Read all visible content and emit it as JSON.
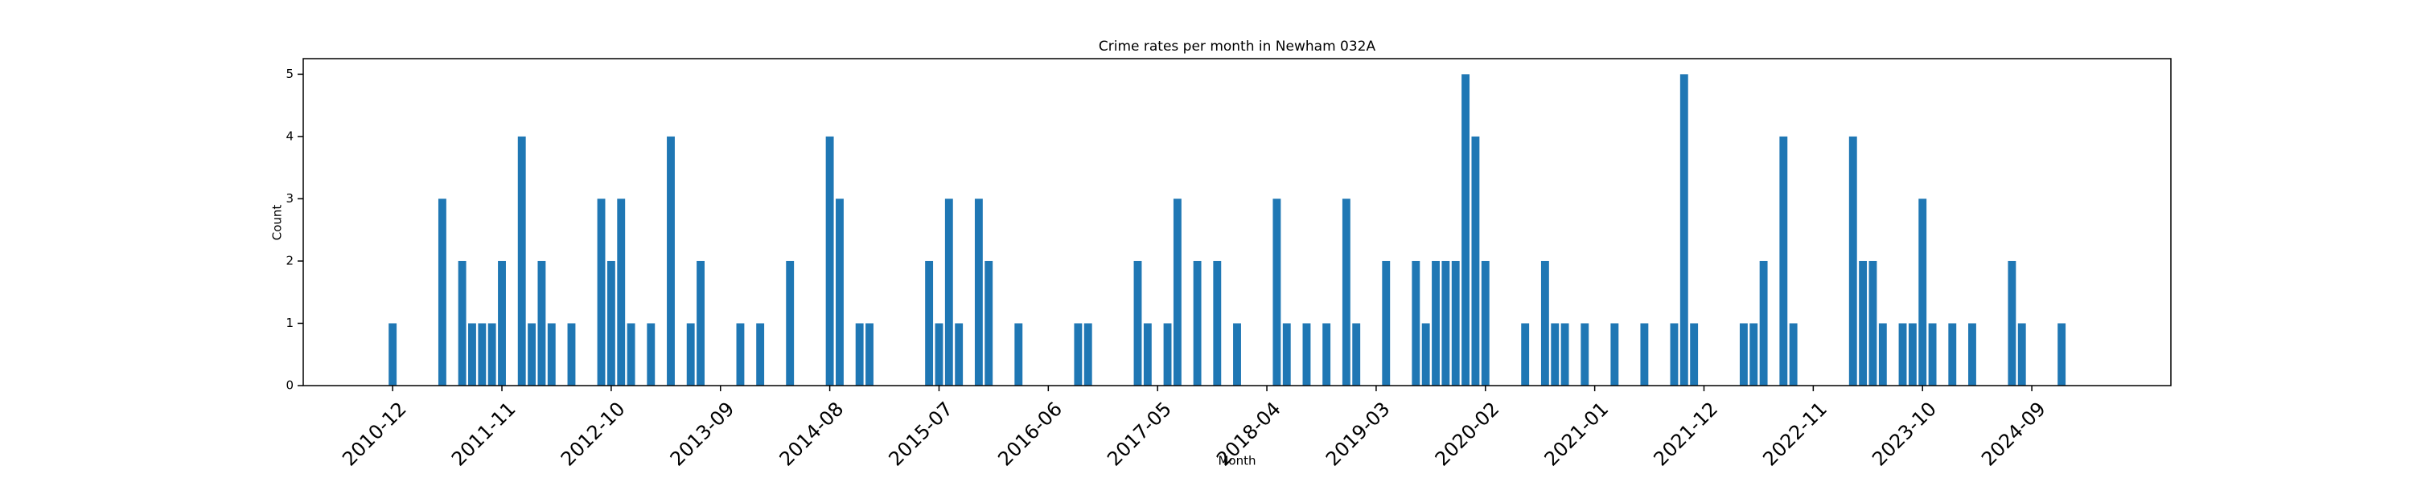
{
  "chart_data": {
    "type": "bar",
    "title": "Crime rates per month in Newham 032A",
    "xlabel": "Month",
    "ylabel": "Count",
    "color": "#1f77b4",
    "x": [
      "2010-12",
      "2011-05",
      "2011-07",
      "2011-08",
      "2011-09",
      "2011-10",
      "2011-11",
      "2012-01",
      "2012-02",
      "2012-03",
      "2012-04",
      "2012-06",
      "2012-09",
      "2012-10",
      "2012-11",
      "2012-12",
      "2013-02",
      "2013-04",
      "2013-06",
      "2013-07",
      "2013-11",
      "2014-01",
      "2014-04",
      "2014-08",
      "2014-09",
      "2014-11",
      "2014-12",
      "2015-06",
      "2015-07",
      "2015-08",
      "2015-09",
      "2015-11",
      "2015-12",
      "2016-03",
      "2016-09",
      "2016-10",
      "2017-03",
      "2017-04",
      "2017-06",
      "2017-07",
      "2017-09",
      "2017-11",
      "2018-01",
      "2018-05",
      "2018-06",
      "2018-08",
      "2018-10",
      "2018-12",
      "2019-01",
      "2019-04",
      "2019-07",
      "2019-08",
      "2019-09",
      "2019-10",
      "2019-11",
      "2019-12",
      "2020-01",
      "2020-02",
      "2020-06",
      "2020-08",
      "2020-09",
      "2020-10",
      "2020-12",
      "2021-03",
      "2021-06",
      "2021-09",
      "2021-10",
      "2021-11",
      "2022-04",
      "2022-05",
      "2022-06",
      "2022-08",
      "2022-09",
      "2023-03",
      "2023-04",
      "2023-05",
      "2023-06",
      "2023-08",
      "2023-09",
      "2023-10",
      "2023-11",
      "2024-01",
      "2024-03",
      "2024-07",
      "2024-08",
      "2024-12"
    ],
    "values": [
      1,
      3,
      2,
      1,
      1,
      1,
      2,
      4,
      1,
      2,
      1,
      1,
      3,
      2,
      3,
      1,
      1,
      4,
      1,
      2,
      1,
      1,
      2,
      4,
      3,
      1,
      1,
      2,
      1,
      3,
      1,
      3,
      2,
      1,
      1,
      1,
      2,
      1,
      1,
      3,
      2,
      2,
      1,
      3,
      1,
      1,
      1,
      3,
      1,
      2,
      2,
      1,
      2,
      2,
      2,
      5,
      4,
      2,
      1,
      2,
      1,
      1,
      1,
      1,
      1,
      1,
      5,
      1,
      1,
      1,
      2,
      4,
      1,
      4,
      2,
      2,
      1,
      1,
      1,
      3,
      1,
      1,
      1,
      2,
      1,
      1
    ],
    "xlim": [
      "2010-03",
      "2025-11"
    ],
    "xticks": [
      "2010-12",
      "2011-11",
      "2012-10",
      "2013-09",
      "2014-08",
      "2015-07",
      "2016-06",
      "2017-05",
      "2018-04",
      "2019-03",
      "2020-02",
      "2021-01",
      "2021-12",
      "2022-11",
      "2023-10",
      "2024-09"
    ],
    "ylim": [
      0,
      5.25
    ],
    "yticks": [
      0,
      1,
      2,
      3,
      4,
      5
    ]
  }
}
